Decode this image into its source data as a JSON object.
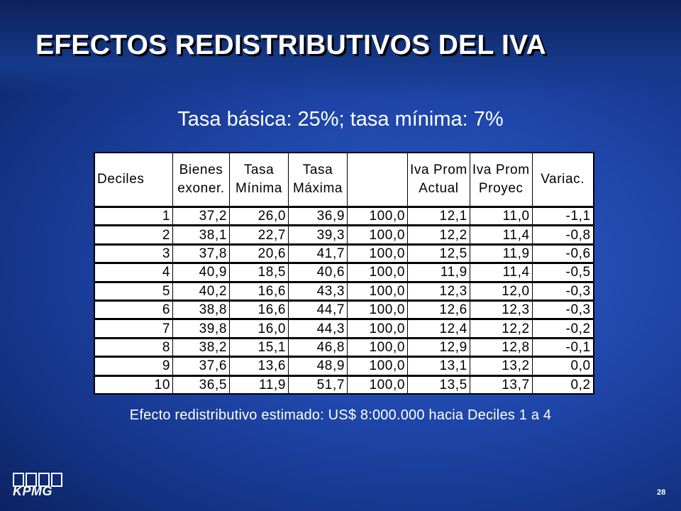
{
  "slide": {
    "title": "EFECTOS REDISTRIBUTIVOS DEL IVA",
    "subtitle": "Tasa básica: 25%; tasa mínima: 7%",
    "note": "Efecto redistributivo estimado: US$ 8:000.000 hacia Deciles 1 a 4",
    "page_number": "28"
  },
  "logo": {
    "text": "KPMG"
  },
  "table": {
    "headers": [
      {
        "line1": "Deciles",
        "line2": ""
      },
      {
        "line1": "Bienes",
        "line2": "exoner."
      },
      {
        "line1": "Tasa",
        "line2": "Mínima"
      },
      {
        "line1": "Tasa",
        "line2": "Máxima"
      },
      {
        "line1": "",
        "line2": ""
      },
      {
        "line1": "Iva Prom",
        "line2": "Actual"
      },
      {
        "line1": "Iva Prom",
        "line2": "Proyec"
      },
      {
        "line1": "Variac.",
        "line2": ""
      }
    ],
    "rows": [
      [
        "1",
        "37,2",
        "26,0",
        "36,9",
        "100,0",
        "12,1",
        "11,0",
        "-1,1"
      ],
      [
        "2",
        "38,1",
        "22,7",
        "39,3",
        "100,0",
        "12,2",
        "11,4",
        "-0,8"
      ],
      [
        "3",
        "37,8",
        "20,6",
        "41,7",
        "100,0",
        "12,5",
        "11,9",
        "-0,6"
      ],
      [
        "4",
        "40,9",
        "18,5",
        "40,6",
        "100,0",
        "11,9",
        "11,4",
        "-0,5"
      ],
      [
        "5",
        "40,2",
        "16,6",
        "43,3",
        "100,0",
        "12,3",
        "12,0",
        "-0,3"
      ],
      [
        "6",
        "38,8",
        "16,6",
        "44,7",
        "100,0",
        "12,6",
        "12,3",
        "-0,3"
      ],
      [
        "7",
        "39,8",
        "16,0",
        "44,3",
        "100,0",
        "12,4",
        "12,2",
        "-0,2"
      ],
      [
        "8",
        "38,2",
        "15,1",
        "46,8",
        "100,0",
        "12,9",
        "12,8",
        "-0,1"
      ],
      [
        "9",
        "37,6",
        "13,6",
        "48,9",
        "100,0",
        "13,1",
        "13,2",
        "0,0"
      ],
      [
        "10",
        "36,5",
        "11,9",
        "51,7",
        "100,0",
        "13,5",
        "13,7",
        "0,2"
      ]
    ]
  }
}
